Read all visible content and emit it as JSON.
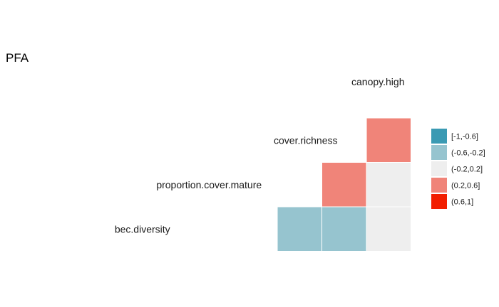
{
  "chart_data": {
    "type": "heatmap",
    "title": "PFA",
    "variables": [
      "canopy.high",
      "cover.richness",
      "proportion.cover.mature",
      "bec.diversity"
    ],
    "cells": [
      {
        "row": "cover.richness",
        "col": "canopy.high",
        "bin": "(0.2,0.6]"
      },
      {
        "row": "proportion.cover.mature",
        "col": "canopy.high",
        "bin": "(-0.2,0.2]"
      },
      {
        "row": "proportion.cover.mature",
        "col": "cover.richness",
        "bin": "(0.2,0.6]"
      },
      {
        "row": "bec.diversity",
        "col": "canopy.high",
        "bin": "(-0.2,0.2]"
      },
      {
        "row": "bec.diversity",
        "col": "cover.richness",
        "bin": "(-0.6,-0.2]"
      },
      {
        "row": "bec.diversity",
        "col": "proportion.cover.mature",
        "bin": "(-0.6,-0.2]"
      }
    ],
    "legend": {
      "placement": "right",
      "entries": [
        {
          "label": "[-1,-0.6]",
          "color": "#3a9ab3"
        },
        {
          "label": "(-0.6,-0.2]",
          "color": "#96c4cf"
        },
        {
          "label": "(-0.2,0.2]",
          "color": "#eeeeee"
        },
        {
          "label": "(0.2,0.6]",
          "color": "#f08479"
        },
        {
          "label": "(0.6,1]",
          "color": "#f21e00"
        }
      ]
    }
  }
}
